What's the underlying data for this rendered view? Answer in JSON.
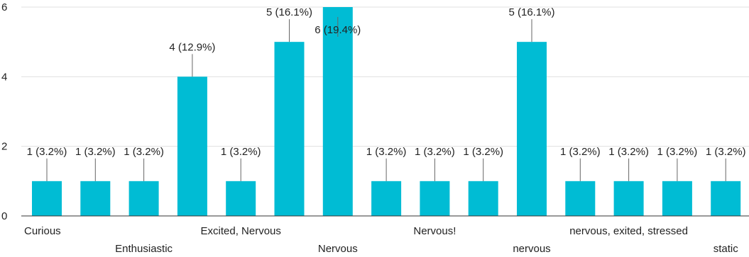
{
  "chart_data": {
    "type": "bar",
    "title": "",
    "xlabel": "",
    "ylabel": "",
    "ylim": [
      0,
      6
    ],
    "yticks": [
      0,
      2,
      4,
      6
    ],
    "grid": true,
    "legend": "none",
    "bar_color": "#00bcd4",
    "categories": [
      "Curious",
      "",
      "Enthusiastic",
      "",
      "Excited, Nervous",
      "",
      "Nervous",
      "",
      "Nervous!",
      "",
      "nervous",
      "",
      "nervous, exited, stressed",
      "",
      "static"
    ],
    "values": [
      1,
      1,
      1,
      4,
      1,
      5,
      6,
      1,
      1,
      1,
      5,
      1,
      1,
      1,
      1
    ],
    "data_labels": [
      "1 (3.2%)",
      "1 (3.2%)",
      "1 (3.2%)",
      "4 (12.9%)",
      "1 (3.2%)",
      "5 (16.1%)",
      "6 (19.4%)",
      "1 (3.2%)",
      "1 (3.2%)",
      "1 (3.2%)",
      "5 (16.1%)",
      "1 (3.2%)",
      "1 (3.2%)",
      "1 (3.2%)",
      "1 (3.2%)"
    ]
  }
}
